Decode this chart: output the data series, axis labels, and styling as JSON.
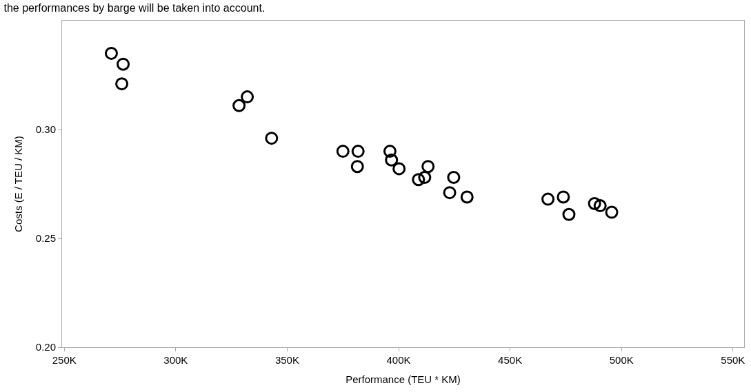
{
  "chart_data": {
    "type": "scatter",
    "title": "the performances by barge will be taken into account.",
    "xlabel": "Performance (TEU * KM)",
    "ylabel": "Costs (E / TEU / KM)",
    "x": [
      271100,
      276400,
      275800,
      328400,
      332100,
      343000,
      375000,
      381800,
      381500,
      396100,
      396800,
      400200,
      413200,
      408900,
      411700,
      424700,
      422900,
      430700,
      467000,
      473900,
      476400,
      487900,
      490400,
      495600
    ],
    "series": [
      {
        "color": "#000000",
        "values": [
          0.335,
          0.33,
          0.321,
          0.311,
          0.315,
          0.296,
          0.29,
          0.29,
          0.283,
          0.29,
          0.286,
          0.282,
          0.283,
          0.277,
          0.278,
          0.278,
          0.271,
          0.269,
          0.268,
          0.269,
          0.261,
          0.266,
          0.265,
          0.262
        ]
      }
    ],
    "xlim": [
      249000,
      555000
    ],
    "ylim": [
      0.2,
      0.35
    ],
    "xticks": [
      {
        "value": 250000,
        "label": "250K"
      },
      {
        "value": 300000,
        "label": "300K"
      },
      {
        "value": 350000,
        "label": "350K"
      },
      {
        "value": 400000,
        "label": "400K"
      },
      {
        "value": 450000,
        "label": "450K"
      },
      {
        "value": 500000,
        "label": "500K"
      },
      {
        "value": 550000,
        "label": "550K"
      }
    ],
    "yticks": [
      {
        "value": 0.2,
        "label": "0.20"
      },
      {
        "value": 0.25,
        "label": "0.25"
      },
      {
        "value": 0.3,
        "label": "0.30"
      }
    ],
    "marker": "circle"
  }
}
